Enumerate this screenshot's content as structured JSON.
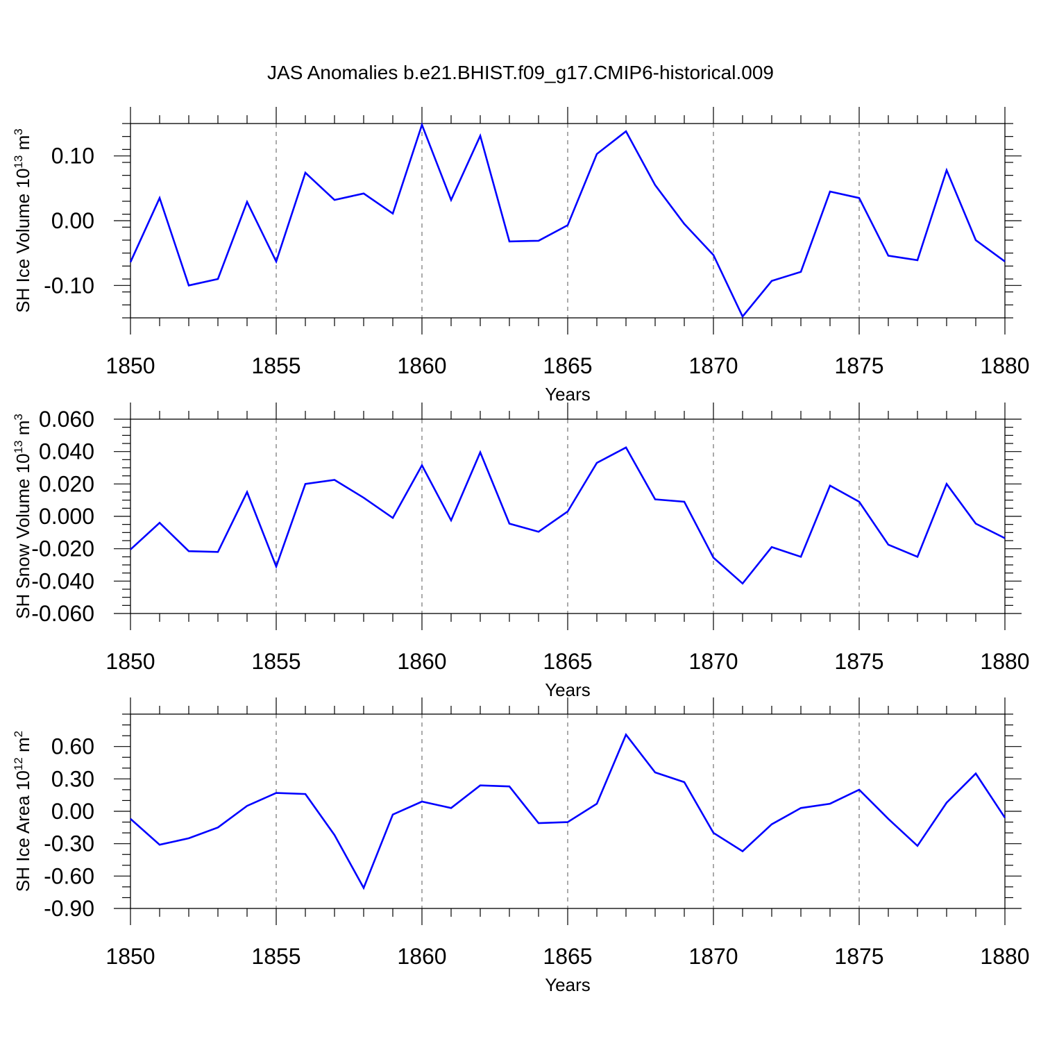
{
  "figure": {
    "title": "JAS Anomalies b.e21.BHIST.f09_g17.CMIP6-historical.009"
  },
  "colors": {
    "series": "#0000ff",
    "axis": "#000000",
    "grid": "#555555"
  },
  "chart_data": [
    {
      "type": "line",
      "ylabel": "SH Ice Volume 10",
      "ylabel_exp": "13",
      "ylabel_unit": " m",
      "ylabel_unit_exp": "3",
      "xlabel": "Years",
      "xlim": [
        1850,
        1880
      ],
      "ylim": [
        -0.15,
        0.15
      ],
      "x_ticks": [
        1850,
        1855,
        1860,
        1865,
        1870,
        1875,
        1880
      ],
      "x_tick_labels": [
        "1850",
        "1855",
        "1860",
        "1865",
        "1870",
        "1875",
        "1880"
      ],
      "y_ticks": [
        -0.1,
        0.0,
        0.1
      ],
      "y_tick_labels": [
        "-0.10",
        "0.00",
        "0.10"
      ],
      "y_minor_step": 0.02,
      "grid": "x-dashed",
      "x": [
        1850,
        1851,
        1852,
        1853,
        1854,
        1855,
        1856,
        1857,
        1858,
        1859,
        1860,
        1861,
        1862,
        1863,
        1864,
        1865,
        1866,
        1867,
        1868,
        1869,
        1870,
        1871,
        1872,
        1873,
        1874,
        1875,
        1876,
        1877,
        1878,
        1879,
        1880
      ],
      "values": [
        -0.064,
        0.035,
        -0.1,
        -0.09,
        0.029,
        -0.063,
        0.074,
        0.032,
        0.042,
        0.011,
        0.148,
        0.032,
        0.131,
        -0.032,
        -0.031,
        -0.007,
        0.103,
        0.138,
        0.055,
        -0.005,
        -0.053,
        -0.148,
        -0.093,
        -0.079,
        0.045,
        0.035,
        -0.054,
        -0.061,
        0.078,
        -0.03,
        -0.063
      ]
    },
    {
      "type": "line",
      "ylabel": "SH Snow Volume 10",
      "ylabel_exp": "13",
      "ylabel_unit": " m",
      "ylabel_unit_exp": "3",
      "xlabel": "Years",
      "xlim": [
        1850,
        1880
      ],
      "ylim": [
        -0.06,
        0.06
      ],
      "x_ticks": [
        1850,
        1855,
        1860,
        1865,
        1870,
        1875,
        1880
      ],
      "x_tick_labels": [
        "1850",
        "1855",
        "1860",
        "1865",
        "1870",
        "1875",
        "1880"
      ],
      "y_ticks": [
        -0.06,
        -0.04,
        -0.02,
        0.0,
        0.02,
        0.04,
        0.06
      ],
      "y_tick_labels": [
        "-0.060",
        "-0.040",
        "-0.020",
        "0.000",
        "0.020",
        "0.040",
        "0.060"
      ],
      "y_minor_step": 0.005,
      "grid": "x-dashed",
      "x": [
        1850,
        1851,
        1852,
        1853,
        1854,
        1855,
        1856,
        1857,
        1858,
        1859,
        1860,
        1861,
        1862,
        1863,
        1864,
        1865,
        1866,
        1867,
        1868,
        1869,
        1870,
        1871,
        1872,
        1873,
        1874,
        1875,
        1876,
        1877,
        1878,
        1879,
        1880
      ],
      "values": [
        -0.0205,
        -0.004,
        -0.0215,
        -0.022,
        0.015,
        -0.031,
        0.02,
        0.0225,
        0.0115,
        -0.001,
        0.0315,
        -0.0025,
        0.0395,
        -0.0045,
        -0.0095,
        0.003,
        0.033,
        0.0425,
        0.0105,
        0.009,
        -0.0255,
        -0.0415,
        -0.019,
        -0.025,
        0.019,
        0.009,
        -0.0175,
        -0.025,
        0.02,
        -0.0045,
        -0.0135
      ]
    },
    {
      "type": "line",
      "ylabel": "SH Ice Area 10",
      "ylabel_exp": "12",
      "ylabel_unit": " m",
      "ylabel_unit_exp": "2",
      "xlabel": "Years",
      "xlim": [
        1850,
        1880
      ],
      "ylim": [
        -0.9,
        0.9
      ],
      "x_ticks": [
        1850,
        1855,
        1860,
        1865,
        1870,
        1875,
        1880
      ],
      "x_tick_labels": [
        "1850",
        "1855",
        "1860",
        "1865",
        "1870",
        "1875",
        "1880"
      ],
      "y_ticks": [
        -0.9,
        -0.6,
        -0.3,
        0.0,
        0.3,
        0.6
      ],
      "y_tick_labels": [
        "-0.90",
        "-0.60",
        "-0.30",
        "0.00",
        "0.30",
        "0.60"
      ],
      "y_minor_step": 0.1,
      "grid": "x-dashed",
      "x": [
        1850,
        1851,
        1852,
        1853,
        1854,
        1855,
        1856,
        1857,
        1858,
        1859,
        1860,
        1861,
        1862,
        1863,
        1864,
        1865,
        1866,
        1867,
        1868,
        1869,
        1870,
        1871,
        1872,
        1873,
        1874,
        1875,
        1876,
        1877,
        1878,
        1879,
        1880
      ],
      "values": [
        -0.07,
        -0.31,
        -0.25,
        -0.15,
        0.05,
        0.17,
        0.16,
        -0.22,
        -0.71,
        -0.03,
        0.09,
        0.03,
        0.24,
        0.23,
        -0.11,
        -0.1,
        0.07,
        0.71,
        0.36,
        0.27,
        -0.2,
        -0.37,
        -0.12,
        0.03,
        0.07,
        0.2,
        -0.07,
        -0.32,
        0.08,
        0.35,
        -0.06
      ]
    }
  ]
}
